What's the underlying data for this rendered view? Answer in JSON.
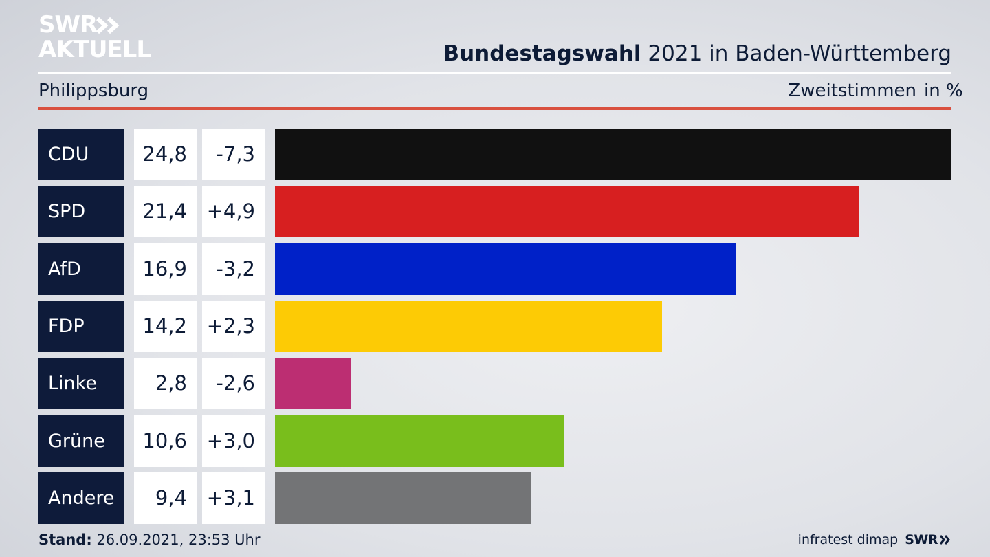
{
  "logo": {
    "line1": "SWR",
    "line2": "AKTUELL"
  },
  "header": {
    "title_bold": "Bundestagswahl",
    "title_rest": " 2021 in Baden-Württemberg",
    "location": "Philippsburg",
    "measure": "Zweitstimmen",
    "unit": "in %"
  },
  "chart_data": {
    "type": "bar",
    "categories": [
      "CDU",
      "SPD",
      "AfD",
      "FDP",
      "Linke",
      "Grüne",
      "Andere"
    ],
    "values_display": [
      "24,8",
      "21,4",
      "16,9",
      "14,2",
      "2,8",
      "10,6",
      "9,4"
    ],
    "diffs_display": [
      "-7,3",
      "+4,9",
      "-3,2",
      "+2,3",
      "-2,6",
      "+3,0",
      "+3,1"
    ],
    "series": [
      {
        "values": [
          24.8,
          21.4,
          16.9,
          14.2,
          2.8,
          10.6,
          9.4
        ]
      }
    ],
    "changes": [
      -7.3,
      4.9,
      -3.2,
      2.3,
      -2.6,
      3.0,
      3.1
    ],
    "colors": [
      "#111111",
      "#d71f20",
      "#0021c8",
      "#fdcb05",
      "#bc2e72",
      "#79be1c",
      "#737476"
    ],
    "xlim": [
      0,
      24.8
    ]
  },
  "footer": {
    "stand_label": "Stand:",
    "stand_value": " 26.09.2021, 23:53 Uhr",
    "source": "infratest dimap",
    "brand": "SWR"
  }
}
